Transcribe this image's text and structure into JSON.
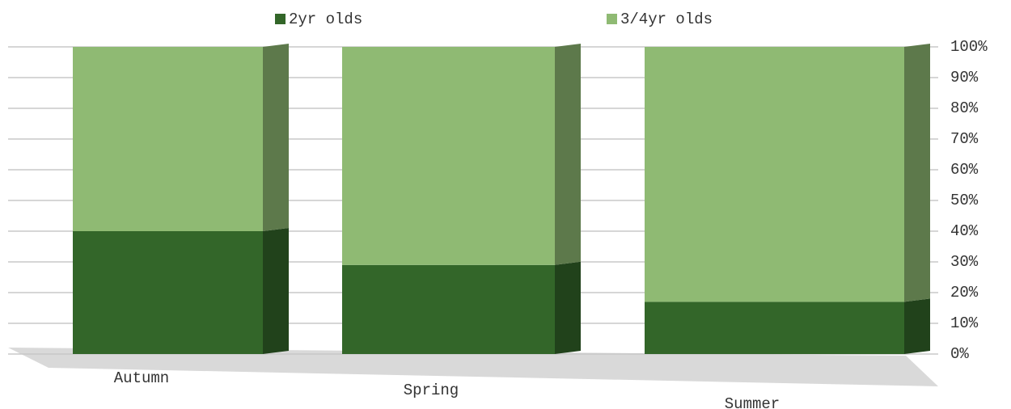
{
  "chart_data": {
    "type": "bar",
    "stacked": true,
    "categories": [
      "Autumn",
      "Spring",
      "Summer"
    ],
    "series": [
      {
        "name": "2yr olds",
        "color": "#336629",
        "values": [
          40,
          29,
          17
        ]
      },
      {
        "name": "3/4yr olds",
        "color": "#8fba73",
        "values": [
          60,
          71,
          83
        ]
      }
    ],
    "ylim": [
      0,
      100
    ],
    "yticks": [
      {
        "value": 0,
        "label": "0%"
      },
      {
        "value": 10,
        "label": "10%"
      },
      {
        "value": 20,
        "label": "20%"
      },
      {
        "value": 30,
        "label": "30%"
      },
      {
        "value": 40,
        "label": "40%"
      },
      {
        "value": 50,
        "label": "50%"
      },
      {
        "value": 60,
        "label": "60%"
      },
      {
        "value": 70,
        "label": "70%"
      },
      {
        "value": 80,
        "label": "80%"
      },
      {
        "value": 90,
        "label": "90%"
      },
      {
        "value": 100,
        "label": "100%"
      }
    ],
    "grid": true,
    "legend": "top"
  }
}
